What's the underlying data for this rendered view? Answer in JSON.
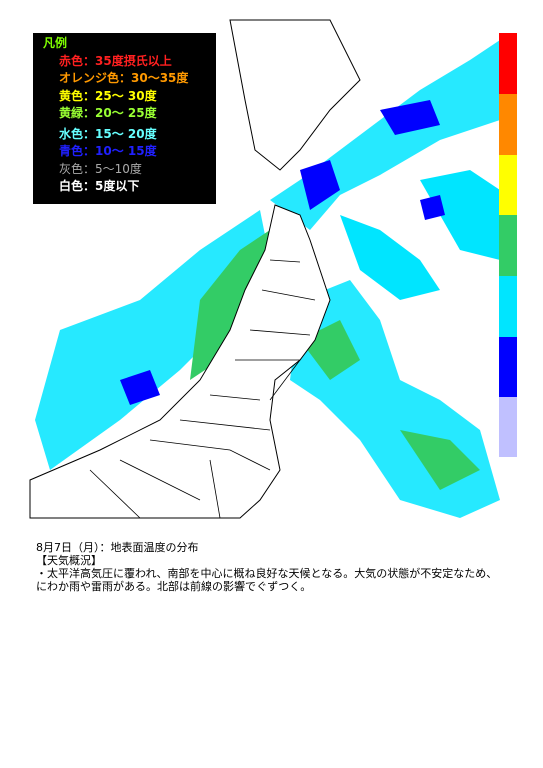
{
  "legend": {
    "title": "凡例",
    "items": [
      "赤色：35度摂氏以上",
      "オレンジ色：30〜35度",
      "黄色：25〜 30度",
      "黄緑：20〜 25度",
      "水色：15〜 20度",
      "青色：10〜 15度",
      "灰色：5〜10度",
      "白色：5度以下"
    ]
  },
  "caption": {
    "title": "8月7日（月）：地表面温度の分布",
    "heading": "【天気概況】",
    "body": "・太平洋高気圧に覆われ、南部を中心に概ね良好な天候となる。大気の状態が不安定なため、にわか雨や雷雨がある。北部は前線の影響でぐずつく。"
  }
}
